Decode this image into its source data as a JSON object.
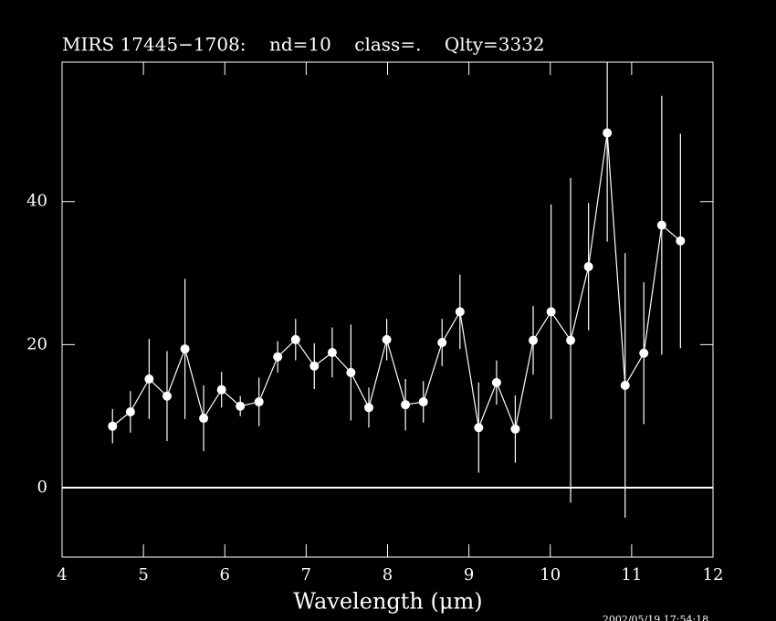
{
  "chart_data": {
    "type": "errorbar",
    "title": "MIRS 17445−1708:    nd=10    class=.    Qlty=3332",
    "xlabel": "Wavelength (μm)",
    "annotation": "2002/05/19 17:54:18",
    "x": [
      4.62,
      4.84,
      5.07,
      5.29,
      5.51,
      5.74,
      5.96,
      6.19,
      6.42,
      6.65,
      6.87,
      7.1,
      7.32,
      7.55,
      7.77,
      7.99,
      8.22,
      8.44,
      8.67,
      8.89,
      9.12,
      9.34,
      9.57,
      9.79,
      10.01,
      10.25,
      10.47,
      10.7,
      10.92,
      11.15,
      11.37,
      11.6
    ],
    "values": [
      8.6,
      10.6,
      15.2,
      12.8,
      19.4,
      9.7,
      13.7,
      11.4,
      12.0,
      18.3,
      20.7,
      17.0,
      18.9,
      16.1,
      11.2,
      20.7,
      11.6,
      12.0,
      20.3,
      24.6,
      8.4,
      14.7,
      8.2,
      20.6,
      24.6,
      20.6,
      30.9,
      49.6,
      14.3,
      18.8,
      36.7,
      34.5
    ],
    "errors": [
      2.4,
      2.9,
      5.6,
      6.3,
      9.8,
      4.6,
      2.5,
      1.4,
      3.4,
      2.2,
      2.9,
      3.2,
      3.5,
      6.7,
      2.8,
      2.9,
      3.6,
      2.9,
      3.3,
      5.2,
      6.3,
      3.1,
      4.7,
      4.8,
      15.0,
      22.7,
      8.9,
      15.2,
      18.5,
      9.9,
      18.1,
      15.0
    ],
    "color": "#ffffff",
    "reference_line": 0,
    "xlim": [
      4,
      12
    ],
    "ylim": [
      -9.7,
      59.5
    ],
    "xticks": [
      4,
      5,
      6,
      7,
      8,
      9,
      10,
      11,
      12
    ],
    "yticks": [
      0,
      20,
      40
    ]
  }
}
